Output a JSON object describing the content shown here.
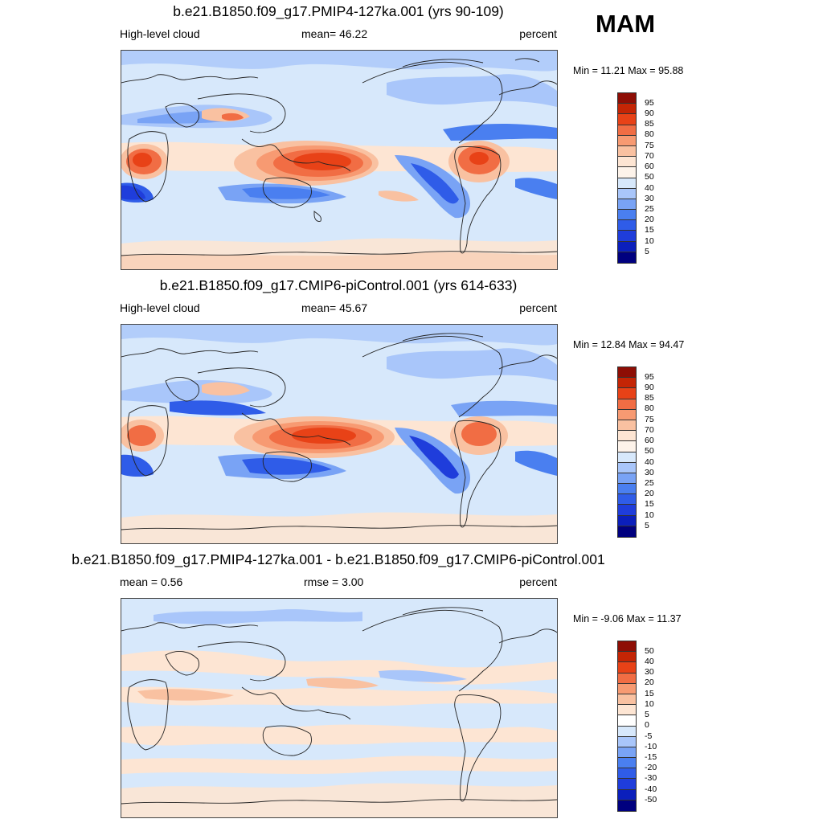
{
  "figure": {
    "season": "MAM"
  },
  "colors": {
    "ocean_background": "#d7e8fb",
    "coastline": "#222222",
    "abs_scale": [
      "#00007f",
      "#0b1fbc",
      "#1f3ddb",
      "#2f5ce8",
      "#4a7ff0",
      "#79a3f5",
      "#a9c6fa",
      "#d7e8fb",
      "#fde5d3",
      "#f9c1a1",
      "#f79a72",
      "#f16d44",
      "#e84217",
      "#c42505",
      "#8e0e05"
    ],
    "diff_scale": [
      "#00007f",
      "#0b1fbc",
      "#1f3ddb",
      "#2f5ce8",
      "#4a7ff0",
      "#79a3f5",
      "#a9c6fa",
      "#d7e8fb",
      "#ffffff",
      "#fde5d3",
      "#f9c1a1",
      "#f79a72",
      "#f16d44",
      "#e84217",
      "#c42505",
      "#8e0e05"
    ]
  },
  "panels": [
    {
      "title": "b.e21.B1850.f09_g17.PMIP4-127ka.001 (yrs 90-109)",
      "left_label": "High-level cloud",
      "mid_label": "mean=  46.22",
      "right_label": "percent",
      "minmax": "Min =  11.21 Max =  95.88",
      "colorbar": {
        "levels": [
          "95",
          "90",
          "85",
          "80",
          "75",
          "70",
          "60",
          "50",
          "40",
          "30",
          "25",
          "20",
          "15",
          "10",
          "5"
        ]
      }
    },
    {
      "title": "b.e21.B1850.f09_g17.CMIP6-piControl.001 (yrs 614-633)",
      "left_label": "High-level cloud",
      "mid_label": "mean=  45.67",
      "right_label": "percent",
      "minmax": "Min =  12.84 Max =  94.47",
      "colorbar": {
        "levels": [
          "95",
          "90",
          "85",
          "80",
          "75",
          "70",
          "60",
          "50",
          "40",
          "30",
          "25",
          "20",
          "15",
          "10",
          "5"
        ]
      }
    },
    {
      "title": "b.e21.B1850.f09_g17.PMIP4-127ka.001 - b.e21.B1850.f09_g17.CMIP6-piControl.001",
      "left_label": "mean =   0.56",
      "mid_label": "rmse =   3.00",
      "right_label": "percent",
      "minmax": "Min =  -9.06 Max =  11.37",
      "colorbar": {
        "levels": [
          "50",
          "40",
          "30",
          "20",
          "15",
          "10",
          "5",
          "0",
          "-5",
          "-10",
          "-15",
          "-20",
          "-30",
          "-40",
          "-50"
        ]
      }
    }
  ]
}
